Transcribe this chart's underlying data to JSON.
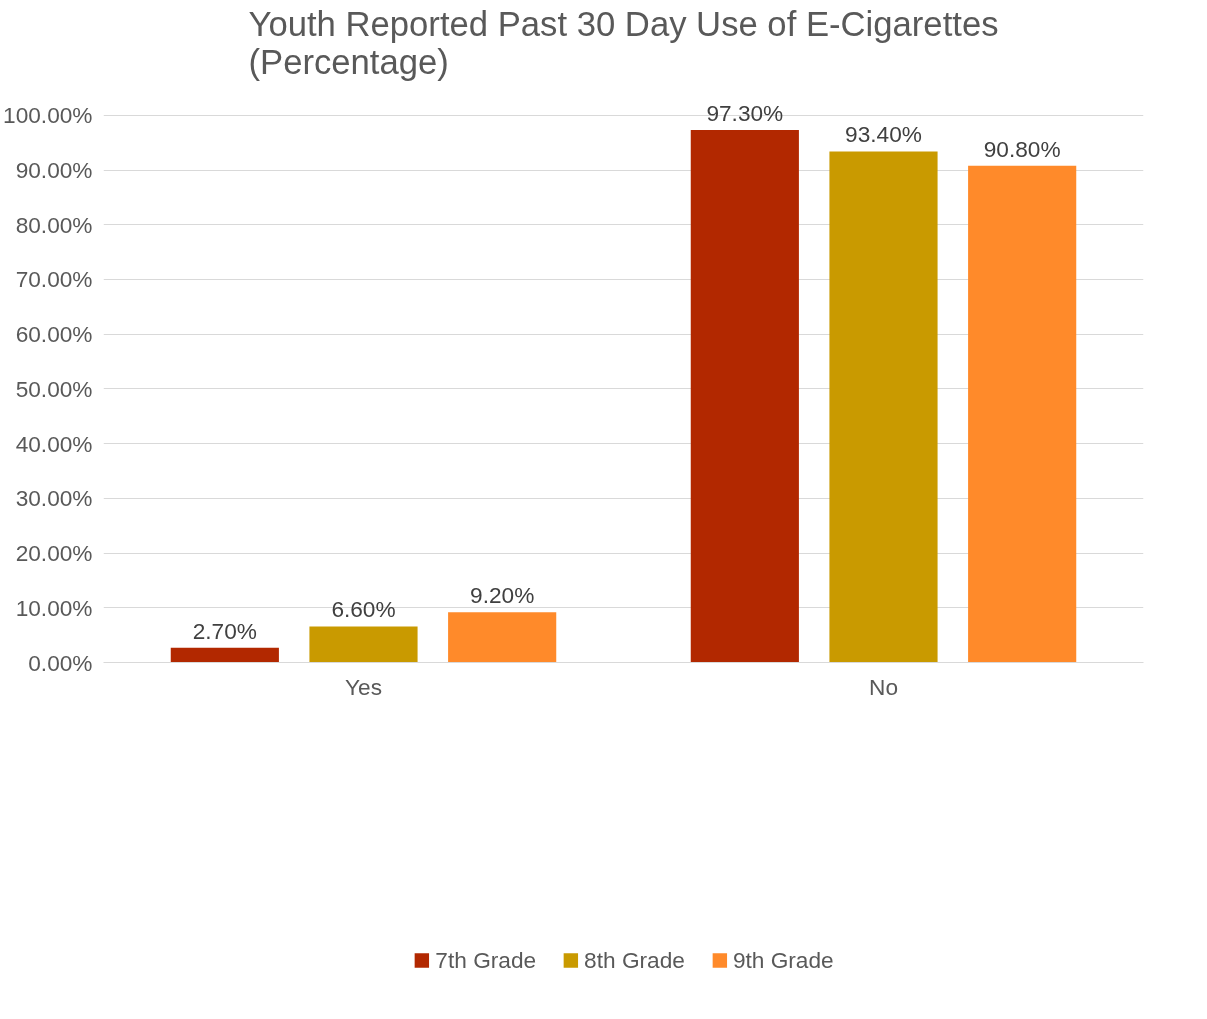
{
  "chart_data": {
    "type": "bar",
    "title": "Youth Reported Past 30 Day Use of E-Cigarettes (Percentage)",
    "categories": [
      "Yes",
      "No"
    ],
    "series": [
      {
        "name": "7th Grade",
        "color": "#b22800",
        "values": [
          2.7,
          97.3
        ],
        "value_labels": [
          "2.70%",
          "97.30%"
        ]
      },
      {
        "name": "8th Grade",
        "color": "#c99a00",
        "values": [
          6.6,
          93.4
        ],
        "value_labels": [
          "6.60%",
          "93.40%"
        ]
      },
      {
        "name": "9th Grade",
        "color": "#ff8a2a",
        "values": [
          9.2,
          90.8
        ],
        "value_labels": [
          "9.20%",
          "90.80%"
        ]
      }
    ],
    "ylim": [
      0,
      100
    ],
    "yticks": [
      {
        "value": 0,
        "label": "0.00%"
      },
      {
        "value": 10,
        "label": "10.00%"
      },
      {
        "value": 20,
        "label": "20.00%"
      },
      {
        "value": 30,
        "label": "30.00%"
      },
      {
        "value": 40,
        "label": "40.00%"
      },
      {
        "value": 50,
        "label": "50.00%"
      },
      {
        "value": 60,
        "label": "60.00%"
      },
      {
        "value": 70,
        "label": "70.00%"
      },
      {
        "value": 80,
        "label": "80.00%"
      },
      {
        "value": 90,
        "label": "90.00%"
      },
      {
        "value": 100,
        "label": "100.00%"
      }
    ],
    "grid": "y",
    "legend": "bottom"
  }
}
